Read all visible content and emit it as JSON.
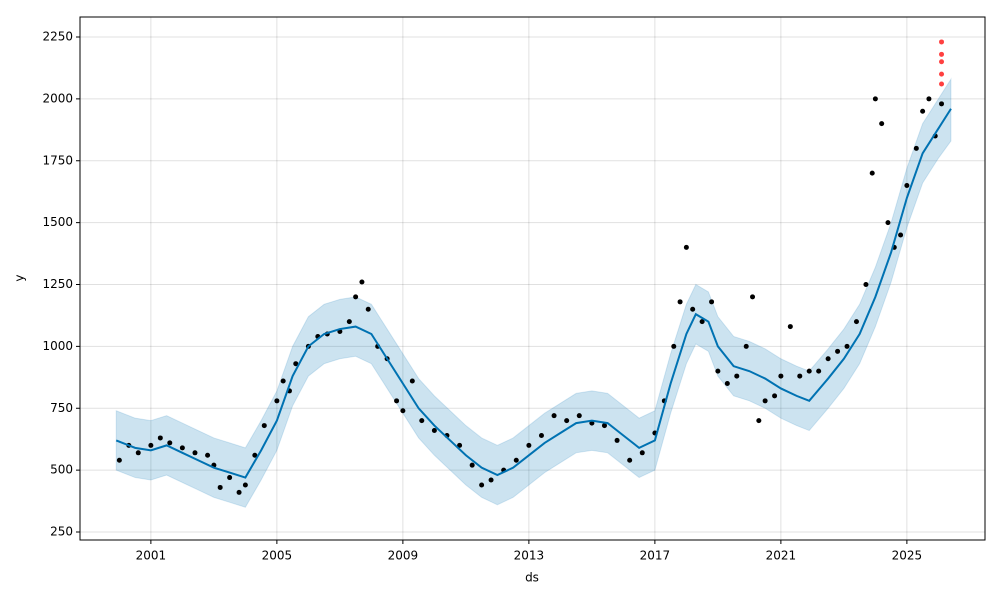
{
  "chart_data": {
    "type": "forecast",
    "xlabel": "ds",
    "ylabel": "y",
    "xlim": [
      1998.75,
      2027.48
    ],
    "ylim": [
      217.7,
      2330.8
    ],
    "xticks": [
      2001,
      2005,
      2009,
      2013,
      2017,
      2021,
      2025
    ],
    "yticks": [
      250,
      500,
      750,
      1000,
      1250,
      1500,
      1750,
      2000,
      2250
    ],
    "grid": true,
    "forecast": {
      "color": "#0072b2",
      "band_color": "#0072b2",
      "x": [
        1999.9,
        2000.5,
        2001,
        2001.5,
        2002,
        2002.5,
        2003,
        2003.5,
        2004,
        2004.5,
        2005,
        2005.5,
        2006,
        2006.5,
        2007,
        2007.5,
        2008,
        2008.5,
        2009,
        2009.5,
        2010,
        2010.5,
        2011,
        2011.5,
        2012,
        2012.5,
        2013,
        2013.5,
        2014,
        2014.5,
        2015,
        2015.5,
        2016,
        2016.5,
        2017,
        2017.5,
        2018,
        2018.3,
        2018.7,
        2019,
        2019.5,
        2020,
        2020.5,
        2021,
        2021.5,
        2021.9,
        2022.5,
        2023,
        2023.5,
        2024,
        2024.5,
        2025,
        2025.5,
        2026,
        2026.4
      ],
      "yhat": [
        620,
        590,
        580,
        600,
        570,
        540,
        510,
        490,
        470,
        580,
        700,
        880,
        1000,
        1050,
        1070,
        1080,
        1050,
        950,
        850,
        750,
        680,
        620,
        560,
        510,
        480,
        510,
        560,
        610,
        650,
        690,
        700,
        690,
        640,
        590,
        620,
        850,
        1050,
        1130,
        1100,
        1000,
        920,
        900,
        870,
        830,
        800,
        780,
        870,
        950,
        1050,
        1200,
        1380,
        1600,
        1780,
        1880,
        1960
      ],
      "yhat_lower": [
        500,
        470,
        460,
        480,
        450,
        420,
        390,
        370,
        350,
        460,
        580,
        760,
        880,
        930,
        950,
        960,
        930,
        830,
        730,
        630,
        560,
        500,
        440,
        390,
        360,
        390,
        440,
        490,
        530,
        570,
        580,
        570,
        520,
        470,
        500,
        730,
        930,
        1010,
        980,
        880,
        800,
        780,
        750,
        710,
        680,
        660,
        750,
        830,
        930,
        1080,
        1260,
        1480,
        1660,
        1760,
        1830
      ],
      "yhat_upper": [
        740,
        710,
        700,
        720,
        690,
        660,
        630,
        610,
        590,
        700,
        820,
        1000,
        1120,
        1170,
        1190,
        1200,
        1170,
        1070,
        970,
        870,
        800,
        740,
        680,
        630,
        600,
        630,
        680,
        730,
        770,
        810,
        820,
        810,
        760,
        710,
        740,
        970,
        1170,
        1250,
        1220,
        1120,
        1040,
        1020,
        990,
        950,
        920,
        900,
        990,
        1070,
        1170,
        1320,
        1500,
        1720,
        1900,
        2000,
        2080
      ]
    },
    "observed": {
      "color": "#000000",
      "x": [
        2000.0,
        2000.3,
        2000.6,
        2001.0,
        2001.3,
        2001.6,
        2002.0,
        2002.4,
        2002.8,
        2003.0,
        2003.2,
        2003.5,
        2003.8,
        2004.0,
        2004.3,
        2004.6,
        2005.0,
        2005.2,
        2005.4,
        2005.6,
        2006.0,
        2006.3,
        2006.6,
        2007.0,
        2007.3,
        2007.5,
        2007.7,
        2007.9,
        2008.2,
        2008.5,
        2008.8,
        2009.0,
        2009.3,
        2009.6,
        2010.0,
        2010.4,
        2010.8,
        2011.2,
        2011.5,
        2011.8,
        2012.2,
        2012.6,
        2013.0,
        2013.4,
        2013.8,
        2014.2,
        2014.6,
        2015.0,
        2015.4,
        2015.8,
        2016.2,
        2016.6,
        2017.0,
        2017.3,
        2017.6,
        2017.8,
        2018.0,
        2018.2,
        2018.5,
        2018.8,
        2019.0,
        2019.3,
        2019.6,
        2019.9,
        2020.1,
        2020.3,
        2020.5,
        2020.8,
        2021.0,
        2021.3,
        2021.6,
        2021.9,
        2022.2,
        2022.5,
        2022.8,
        2023.1,
        2023.4,
        2023.7,
        2023.9,
        2024.0,
        2024.2,
        2024.4,
        2024.6,
        2024.8,
        2025.0,
        2025.3,
        2025.5,
        2025.7,
        2025.9,
        2026.1
      ],
      "y": [
        540,
        600,
        570,
        600,
        630,
        610,
        590,
        570,
        560,
        520,
        430,
        470,
        410,
        440,
        560,
        680,
        780,
        860,
        820,
        930,
        1000,
        1040,
        1050,
        1060,
        1100,
        1200,
        1260,
        1150,
        1000,
        950,
        780,
        740,
        860,
        700,
        660,
        640,
        600,
        520,
        440,
        460,
        500,
        540,
        600,
        640,
        720,
        700,
        720,
        690,
        680,
        620,
        540,
        570,
        650,
        780,
        1000,
        1180,
        1400,
        1150,
        1100,
        1180,
        900,
        850,
        880,
        1000,
        1200,
        700,
        780,
        800,
        880,
        1080,
        880,
        900,
        900,
        950,
        980,
        1000,
        1100,
        1250,
        1700,
        2000,
        1900,
        1500,
        1400,
        1450,
        1650,
        1800,
        1950,
        2000,
        1850,
        1980
      ]
    },
    "outliers": {
      "color": "#ff0000",
      "x": [
        2026.1,
        2026.1,
        2026.1,
        2026.1,
        2026.1
      ],
      "y": [
        2230,
        2180,
        2150,
        2100,
        2060
      ]
    }
  }
}
